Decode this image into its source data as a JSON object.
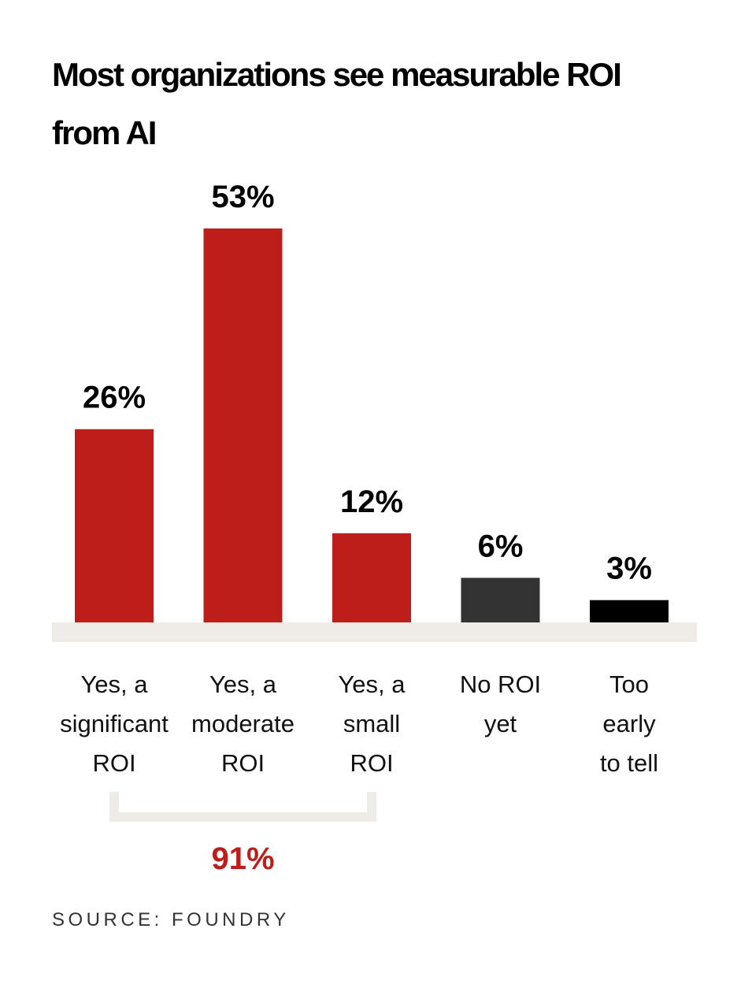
{
  "title": "Most organizations see measurable ROI from AI",
  "source": "SOURCE: FOUNDRY",
  "colors": {
    "accent_red": "#be1e19",
    "dark_gray": "#333333",
    "black": "#000000",
    "baseline": "#efebe6"
  },
  "chart_data": {
    "type": "bar",
    "categories": [
      [
        "Yes, a",
        "significant",
        "ROI"
      ],
      [
        "Yes, a",
        "moderate",
        "ROI"
      ],
      [
        "Yes, a",
        "small",
        "ROI"
      ],
      [
        "No ROI",
        "yet"
      ],
      [
        "Too",
        "early",
        "to tell"
      ]
    ],
    "values": [
      26,
      53,
      12,
      6,
      3
    ],
    "value_labels": [
      "26%",
      "53%",
      "12%",
      "6%",
      "3%"
    ],
    "bar_colors": [
      "#be1e19",
      "#be1e19",
      "#be1e19",
      "#333333",
      "#000000"
    ],
    "ylim": [
      0,
      53
    ],
    "grid": false,
    "annotations": [
      {
        "text": "91%",
        "spans_categories": [
          0,
          2
        ],
        "color": "#be1e19"
      }
    ]
  }
}
